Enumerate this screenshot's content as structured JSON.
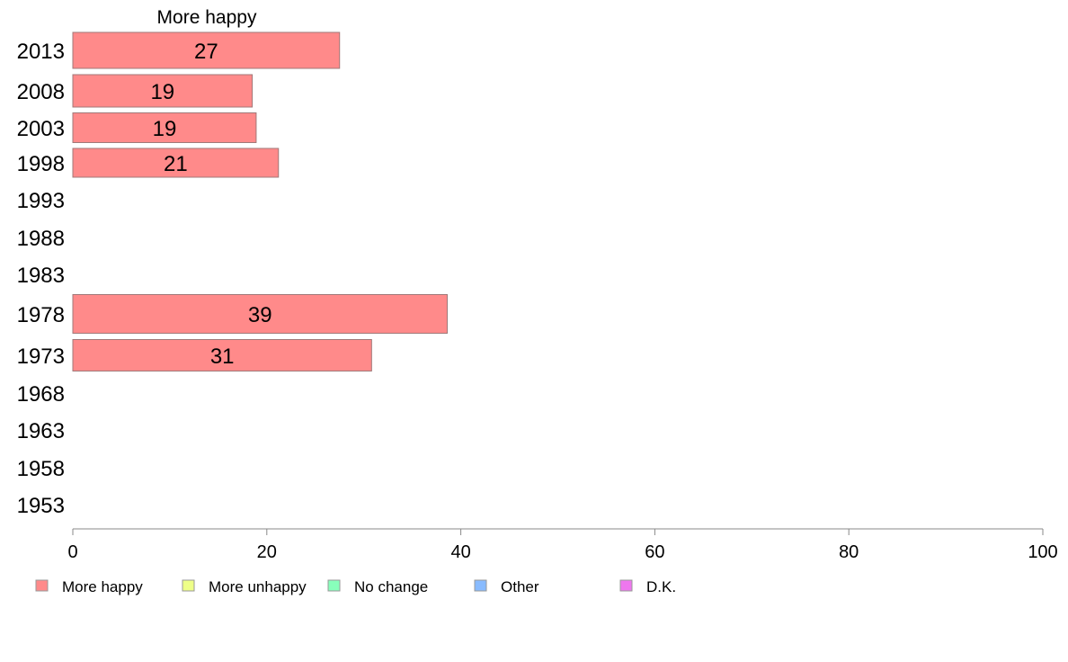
{
  "chart_data": {
    "type": "bar",
    "orientation": "horizontal",
    "panel_title": "More happy",
    "categories": [
      "2013",
      "2008",
      "2003",
      "1998",
      "1993",
      "1988",
      "1983",
      "1978",
      "1973",
      "1968",
      "1963",
      "1958",
      "1953"
    ],
    "series": [
      {
        "name": "More happy",
        "color": "#ff8a8a",
        "values": [
          27.5,
          18.5,
          18.9,
          21.2,
          null,
          null,
          null,
          38.6,
          30.8,
          null,
          null,
          null,
          null
        ],
        "labels": [
          "27",
          "19",
          "19",
          "21",
          "",
          "",
          "",
          "39",
          "31",
          "",
          "",
          "",
          ""
        ]
      }
    ],
    "xlim": [
      0,
      100
    ],
    "xticks": [
      0,
      20,
      40,
      60,
      80,
      100
    ],
    "xtick_labels": [
      "0",
      "20",
      "40",
      "60",
      "80",
      "100"
    ],
    "grid": false,
    "legend_position": "bottom",
    "legend": [
      {
        "label": "More happy",
        "color": "#ff8a8a"
      },
      {
        "label": "More unhappy",
        "color": "#eeff88"
      },
      {
        "label": "No change",
        "color": "#88ffbb"
      },
      {
        "label": "Other",
        "color": "#88bbff"
      },
      {
        "label": "D.K.",
        "color": "#ee77ee"
      }
    ]
  }
}
